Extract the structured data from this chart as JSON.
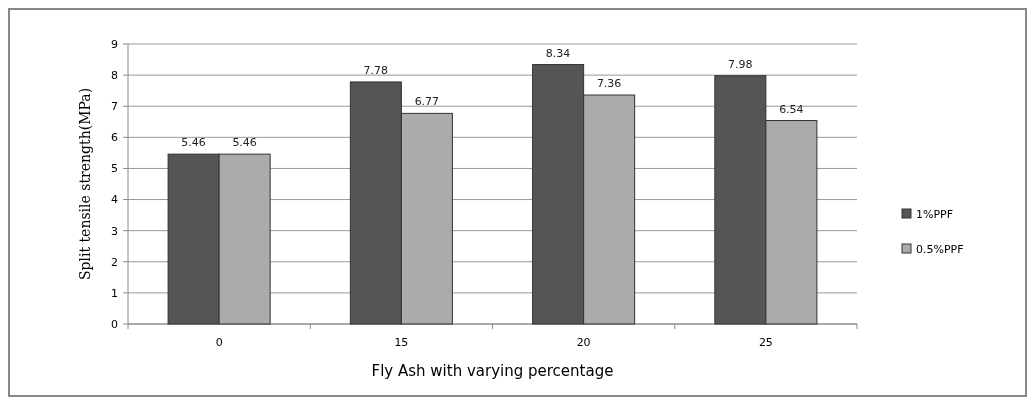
{
  "chart_data": {
    "type": "bar",
    "xlabel": "Fly Ash with varying percentage",
    "ylabel": "Split tensile strength(MPa)",
    "categories": [
      "0",
      "15",
      "20",
      "25"
    ],
    "series": [
      {
        "name": "1%PPF",
        "color": "#555555",
        "values": [
          5.46,
          7.78,
          8.34,
          7.98
        ]
      },
      {
        "name": "0.5%PPF",
        "color": "#ababab",
        "values": [
          5.46,
          6.77,
          7.36,
          6.54
        ]
      }
    ],
    "ylim": [
      0,
      9
    ],
    "yticks": [
      0,
      1,
      2,
      3,
      4,
      5,
      6,
      7,
      8,
      9
    ],
    "grid": "y",
    "legend": "right",
    "data_labels": true
  }
}
